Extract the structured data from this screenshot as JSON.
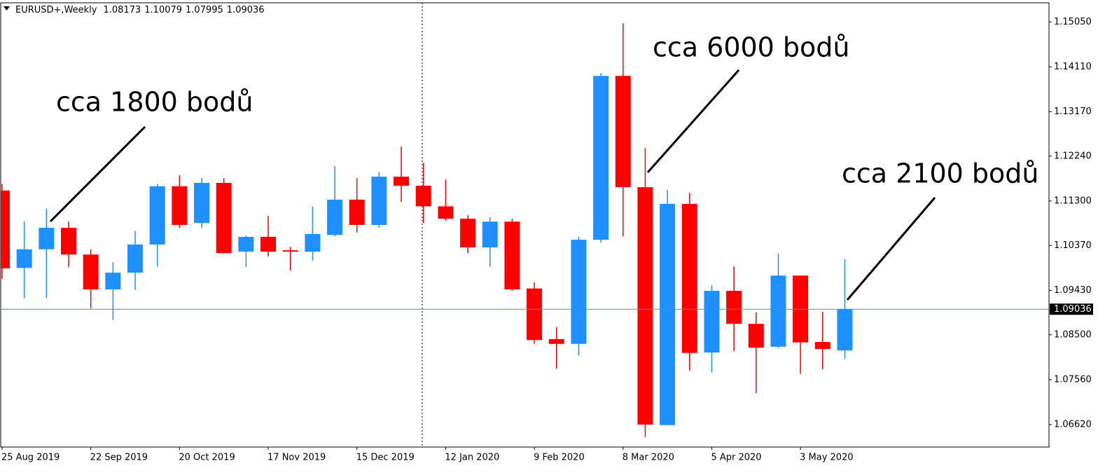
{
  "chart_data": {
    "type": "candlestick",
    "symbol": "EURUSD+,Weekly",
    "categories": [
      "25 Aug 2019",
      null,
      null,
      null,
      "22 Sep 2019",
      null,
      null,
      null,
      "20 Oct 2019",
      null,
      null,
      null,
      "17 Nov 2019",
      null,
      null,
      null,
      "15 Dec 2019",
      null,
      null,
      null,
      "12 Jan 2020",
      null,
      null,
      null,
      "9 Feb 2020",
      null,
      null,
      null,
      "8 Mar 2020",
      null,
      null,
      null,
      "5 Apr 2020",
      null,
      null,
      null,
      "3 May 2020",
      null,
      null
    ],
    "open": [
      1.1152,
      1.099,
      1.1029,
      1.1074,
      1.1018,
      1.0945,
      1.098,
      1.1039,
      1.1161,
      1.1084,
      1.1168,
      1.1024,
      1.1055,
      1.1027,
      1.1024,
      1.1059,
      1.1133,
      1.108,
      1.1181,
      1.1162,
      1.1119,
      1.1093,
      1.1033,
      1.1087,
      1.0947,
      1.0841,
      1.0831,
      1.1049,
      1.1392,
      1.1159,
      1.0661,
      1.1124,
      1.0813,
      1.0942,
      1.0873,
      1.0825,
      1.0974,
      1.0835,
      1.08173
    ],
    "high": [
      1.1166,
      1.1087,
      1.1114,
      1.1087,
      1.1029,
      1.1002,
      1.1067,
      1.1166,
      1.1184,
      1.1178,
      1.1178,
      1.1058,
      1.1099,
      1.1034,
      1.1119,
      1.1203,
      1.1178,
      1.1191,
      1.1244,
      1.121,
      1.1175,
      1.11,
      1.1096,
      1.1093,
      1.096,
      1.0866,
      1.1055,
      1.1398,
      1.1502,
      1.1241,
      1.1153,
      1.1147,
      1.0954,
      1.0993,
      1.0897,
      1.102,
      1.0974,
      1.0898,
      1.10079
    ],
    "low": [
      1.0967,
      1.0927,
      1.0927,
      1.0992,
      1.0905,
      1.0881,
      1.0944,
      1.0993,
      1.1074,
      1.1074,
      1.102,
      1.0992,
      1.1014,
      1.0985,
      1.1005,
      1.1056,
      1.1064,
      1.1074,
      1.1128,
      1.1084,
      1.1089,
      1.1021,
      1.0993,
      1.0942,
      1.0831,
      1.0779,
      1.0807,
      1.1043,
      1.1056,
      1.0636,
      1.0661,
      1.0775,
      1.0771,
      1.0816,
      1.0728,
      1.0822,
      1.0768,
      1.0778,
      1.07995
    ],
    "close": [
      1.0989,
      1.1029,
      1.1074,
      1.1018,
      1.0945,
      1.098,
      1.1039,
      1.1161,
      1.108,
      1.1168,
      1.1021,
      1.1055,
      1.1024,
      1.1024,
      1.1061,
      1.1133,
      1.108,
      1.1181,
      1.1162,
      1.1119,
      1.1093,
      1.1033,
      1.1087,
      1.0945,
      1.0839,
      1.0831,
      1.1049,
      1.1392,
      1.1159,
      1.0662,
      1.1124,
      1.0812,
      1.0942,
      1.0873,
      1.0823,
      1.0974,
      1.0834,
      1.082,
      1.09036
    ],
    "up_color": "#1e90ff",
    "down_color": "#ff0000",
    "ylim": [
      1.0615,
      1.1545
    ],
    "yticks": [
      {
        "value": 1.1505,
        "label": "1.15050"
      },
      {
        "value": 1.1411,
        "label": "1.14110"
      },
      {
        "value": 1.1317,
        "label": "1.13170"
      },
      {
        "value": 1.1224,
        "label": "1.12240"
      },
      {
        "value": 1.113,
        "label": "1.11300"
      },
      {
        "value": 1.1037,
        "label": "1.10370"
      },
      {
        "value": 1.0943,
        "label": "1.09430"
      },
      {
        "value": 1.085,
        "label": "1.08500"
      },
      {
        "value": 1.0756,
        "label": "1.07560"
      },
      {
        "value": 1.0662,
        "label": "1.06620"
      }
    ],
    "annotations": [
      "cca 1800 bodů",
      "cca 6000 bodů",
      "cca 2100 bodů"
    ]
  }
}
